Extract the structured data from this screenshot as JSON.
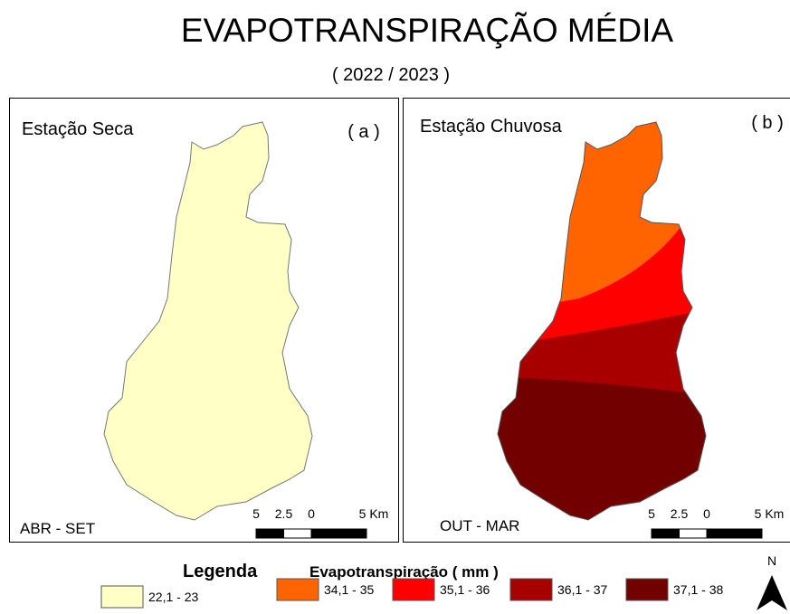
{
  "title": "EVAPOTRANSPIRAÇÃO MÉDIA",
  "subtitle": "( 2022 / 2023 )",
  "panels": [
    {
      "title": "Estação Seca",
      "letter": "( a )",
      "season": "ABR - SET",
      "scale_labels": [
        "5",
        "2.5",
        "0",
        "5 Km"
      ]
    },
    {
      "title": "Estação Chuvosa",
      "letter": "( b )",
      "season": "OUT - MAR",
      "scale_labels": [
        "5",
        "2.5",
        "0",
        "5 Km"
      ]
    }
  ],
  "legend": {
    "title": "Legenda",
    "subtitle": "Evapotranspiração ( mm )",
    "items": [
      {
        "label": "22,1 - 23",
        "color": "#ffffc6"
      },
      {
        "label": "34,1 - 35",
        "color": "#ff6400"
      },
      {
        "label": "35,1 - 36",
        "color": "#ff0000"
      },
      {
        "label": "36,1 - 37",
        "color": "#a80000"
      },
      {
        "label": "37,1 - 38",
        "color": "#730000"
      }
    ]
  },
  "north": "N"
}
